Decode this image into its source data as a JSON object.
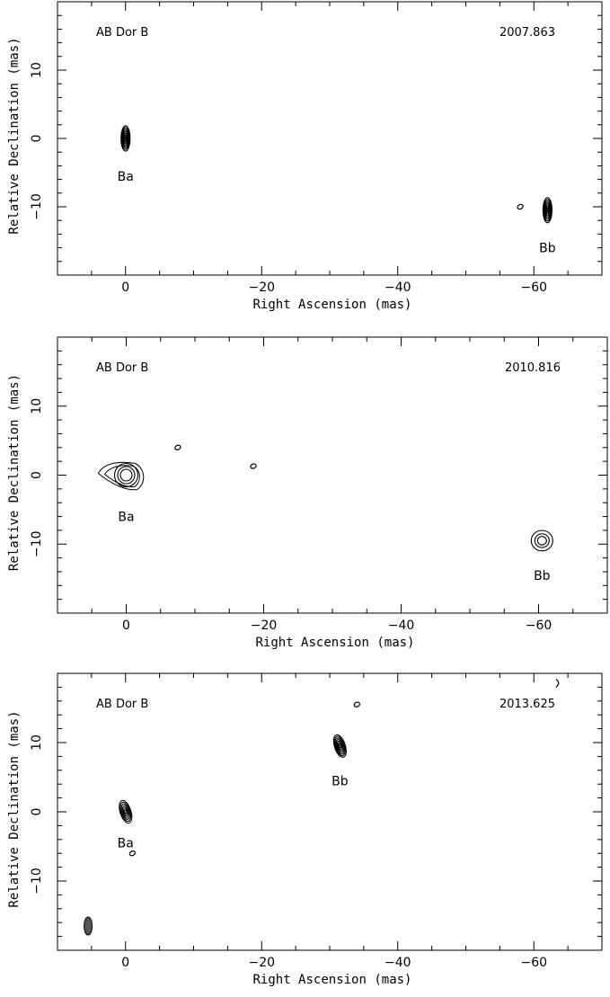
{
  "chart_data": [
    {
      "type": "contour",
      "target": "AB Dor B",
      "epoch": "2007.863",
      "xlabel": "Right Ascension  (mas)",
      "ylabel": "Relative Declination  (mas)",
      "xlim": [
        10,
        -70
      ],
      "ylim": [
        -20,
        20
      ],
      "xticks": [
        "0",
        "−20",
        "−40",
        "−60"
      ],
      "yticks": [
        "10",
        "0",
        "−10"
      ],
      "sources": [
        {
          "label": "Ba",
          "x": 0,
          "y": 0,
          "levels": 7,
          "shape": "narrow"
        },
        {
          "label": "Bb",
          "x": -62,
          "y": -10.5,
          "levels": 7,
          "shape": "narrow"
        },
        {
          "label": "",
          "x": -58,
          "y": -10,
          "levels": 1,
          "shape": "blip"
        }
      ],
      "source_labels": [
        {
          "text": "Ba",
          "x": 0,
          "y": -5.5
        },
        {
          "text": "Bb",
          "x": -62,
          "y": -16
        }
      ]
    },
    {
      "type": "contour",
      "target": "AB Dor B",
      "epoch": "2010.816",
      "xlabel": "Right Ascension  (mas)",
      "ylabel": "Relative Declination  (mas)",
      "xlim": [
        10,
        -70
      ],
      "ylim": [
        -20,
        20
      ],
      "xticks": [
        "0",
        "−20",
        "−40",
        "−60"
      ],
      "yticks": [
        "10",
        "0",
        "−10"
      ],
      "sources": [
        {
          "label": "Ba",
          "x": 0,
          "y": 0,
          "levels": 5,
          "shape": "extended"
        },
        {
          "label": "Bb",
          "x": -60.5,
          "y": -9.5,
          "levels": 3,
          "shape": "round"
        },
        {
          "label": "",
          "x": -7.5,
          "y": 4,
          "levels": 1,
          "shape": "blip"
        },
        {
          "label": "",
          "x": -18.5,
          "y": 1.3,
          "levels": 1,
          "shape": "blip"
        }
      ],
      "source_labels": [
        {
          "text": "Ba",
          "x": 0,
          "y": -6
        },
        {
          "text": "Bb",
          "x": -60.5,
          "y": -14.5
        }
      ]
    },
    {
      "type": "contour",
      "target": "AB Dor B",
      "epoch": "2013.625",
      "xlabel": "Right Ascension  (mas)",
      "ylabel": "Relative Declination  (mas)",
      "xlim": [
        10,
        -70
      ],
      "ylim": [
        -20,
        20
      ],
      "xticks": [
        "0",
        "−20",
        "−40",
        "−60"
      ],
      "yticks": [
        "10",
        "0",
        "−10"
      ],
      "sources": [
        {
          "label": "Ba",
          "x": 0,
          "y": 0,
          "levels": 6,
          "shape": "tilted"
        },
        {
          "label": "Bb",
          "x": -31.5,
          "y": 9.5,
          "levels": 7,
          "shape": "tilted"
        },
        {
          "label": "",
          "x": -1,
          "y": -6,
          "levels": 1,
          "shape": "blip"
        },
        {
          "label": "",
          "x": -34,
          "y": 15.5,
          "levels": 1,
          "shape": "blip"
        },
        {
          "label": "",
          "x": -63.5,
          "y": 18.5,
          "levels": 1,
          "shape": "arc"
        }
      ],
      "beam": {
        "x": 5.5,
        "y": -16.5,
        "filled": true
      },
      "source_labels": [
        {
          "text": "Ba",
          "x": 0,
          "y": -4.5
        },
        {
          "text": "Bb",
          "x": -31.5,
          "y": 4.5
        }
      ]
    }
  ]
}
